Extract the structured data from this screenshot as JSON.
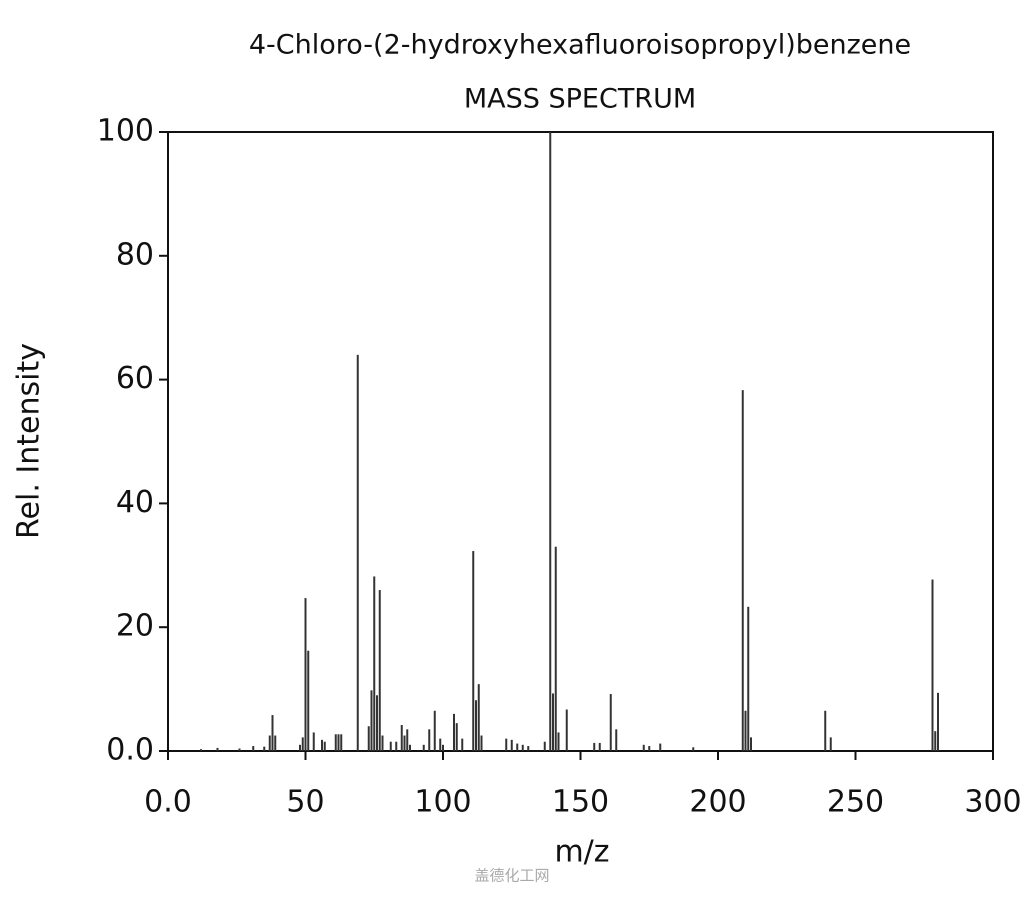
{
  "chart_data": {
    "type": "bar",
    "title": "4-Chloro-(2-hydroxyhexafluoroisopropyl)benzene",
    "subtitle": "MASS SPECTRUM",
    "x_label": "m/z",
    "y_label": "Rel. Intensity",
    "watermark": "盖德化工网",
    "color": "#333333",
    "x": [
      12,
      18,
      26,
      31,
      35,
      37,
      38,
      39,
      48,
      49,
      50,
      51,
      53,
      56,
      57,
      61,
      62,
      63,
      69,
      73,
      74,
      75,
      76,
      77,
      78,
      81,
      83,
      85,
      86,
      87,
      88,
      93,
      95,
      97,
      99,
      100,
      104,
      105,
      107,
      111,
      112,
      113,
      114,
      123,
      125,
      127,
      129,
      131,
      137,
      139,
      140,
      141,
      142,
      145,
      155,
      157,
      161,
      163,
      173,
      175,
      179,
      191,
      209,
      210,
      211,
      212,
      239,
      241,
      278,
      279,
      280
    ],
    "values": [
      0.3,
      0.5,
      0.4,
      0.8,
      0.7,
      2.5,
      5.8,
      2.5,
      1,
      2.2,
      24.7,
      16.2,
      3,
      1.8,
      1.5,
      2.7,
      2.7,
      2.7,
      64,
      4,
      9.8,
      28.2,
      9,
      26,
      2.5,
      1.5,
      1.5,
      4.2,
      2.5,
      3.5,
      1,
      1,
      3.5,
      6.5,
      2,
      1,
      6,
      4.5,
      2,
      32.3,
      8.2,
      10.8,
      2.5,
      2,
      1.8,
      1.2,
      1,
      0.8,
      1.5,
      100,
      9.3,
      33,
      3,
      6.7,
      1.3,
      1.3,
      9.2,
      3.5,
      1,
      0.8,
      1.2,
      0.6,
      58.3,
      6.5,
      23.3,
      2.2,
      6.5,
      2.2,
      27.7,
      3.2,
      9.4
    ],
    "xlim": [
      0,
      300
    ],
    "ylim": [
      0,
      100
    ],
    "xticks": [
      {
        "value": 0,
        "label": "0.0"
      },
      50,
      100,
      150,
      200,
      250,
      300
    ],
    "yticks": [
      {
        "value": 0,
        "label": "0.0"
      },
      20,
      40,
      60,
      80,
      100
    ]
  }
}
